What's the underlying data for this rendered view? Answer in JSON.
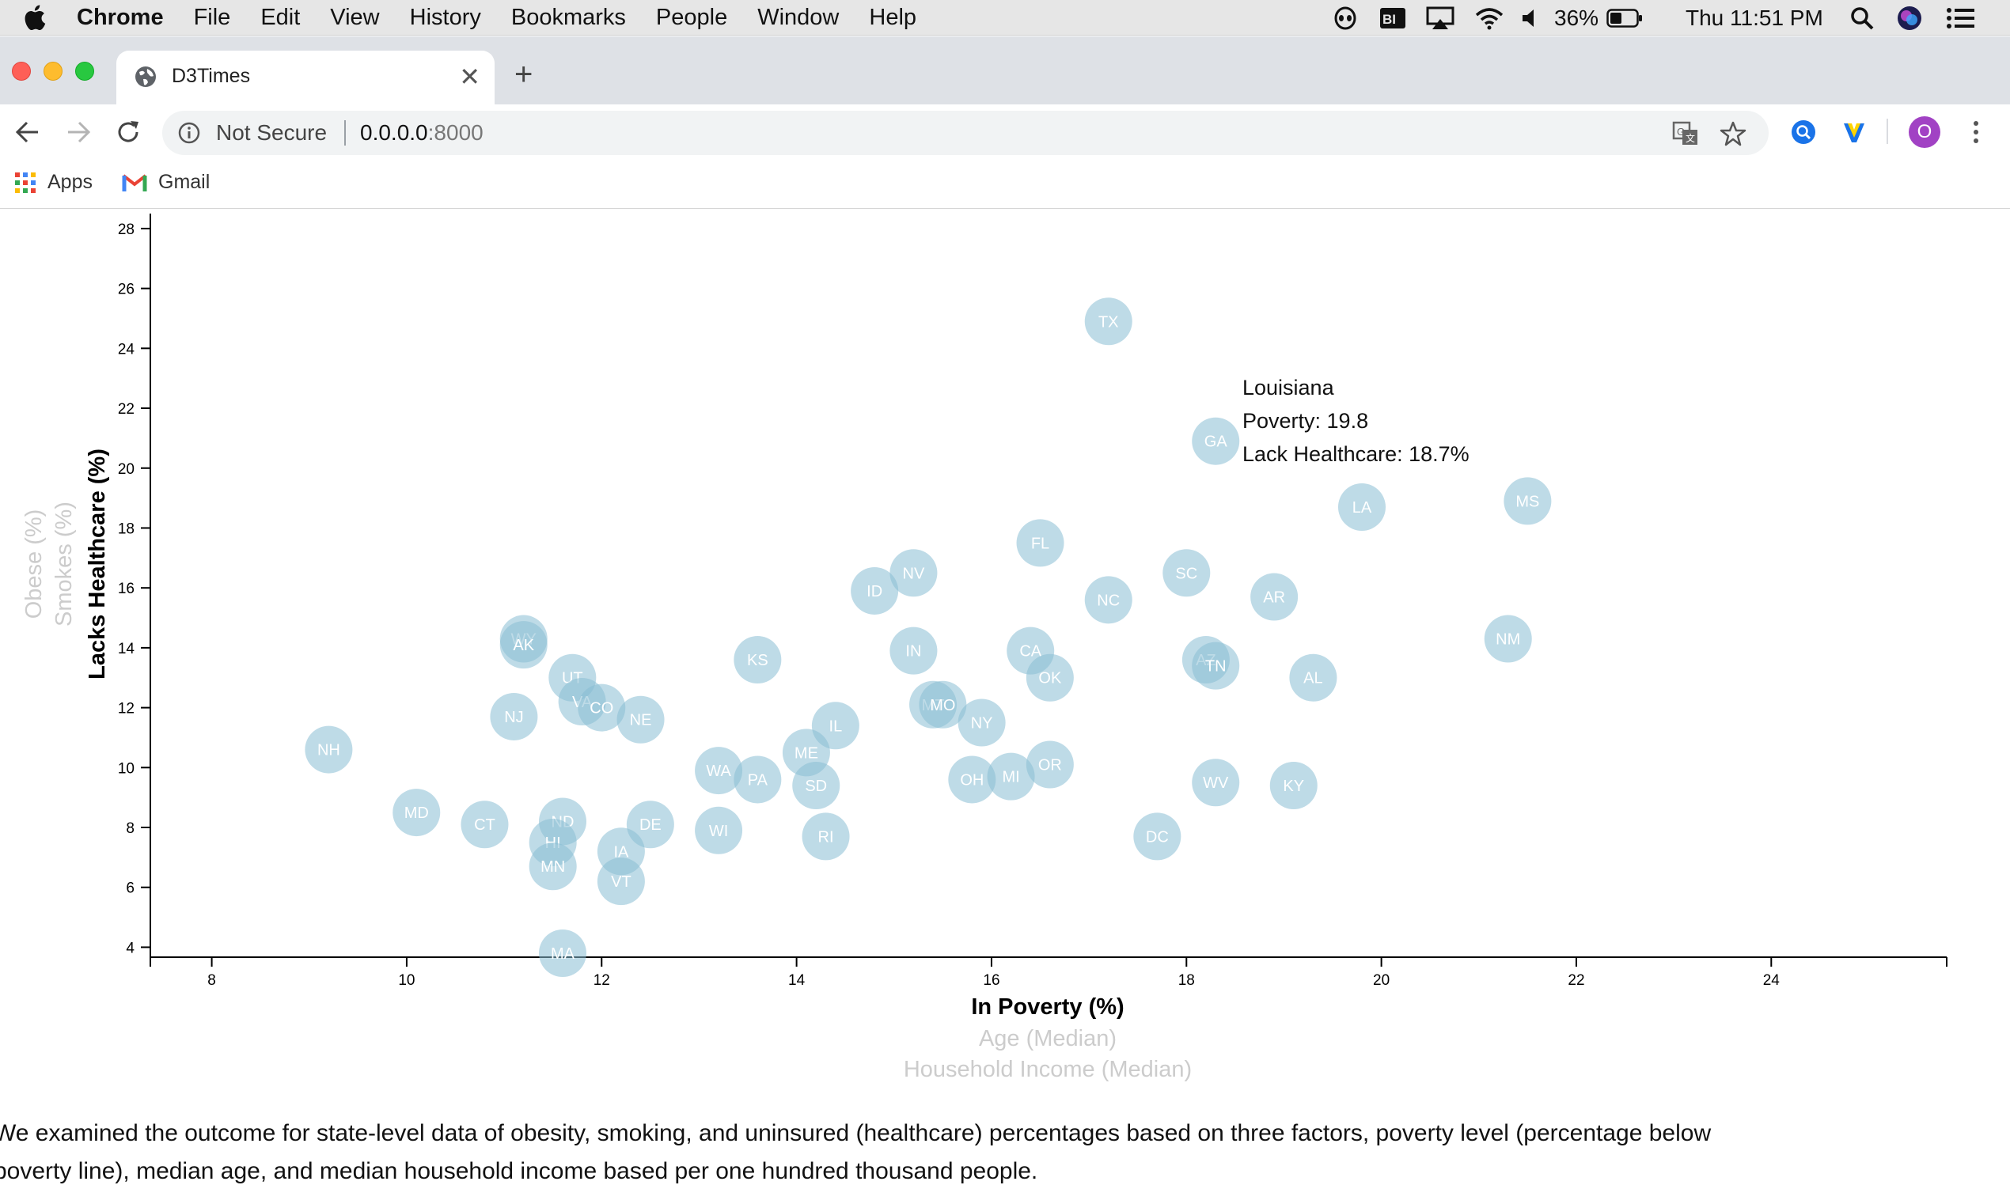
{
  "menubar": {
    "items": [
      "Chrome",
      "File",
      "Edit",
      "View",
      "History",
      "Bookmarks",
      "People",
      "Window",
      "Help"
    ],
    "battery": "36%",
    "clock": "Thu 11:51 PM"
  },
  "tab": {
    "title": "D3Times",
    "close": "✕",
    "new_tab": "+"
  },
  "omnibox": {
    "security": "Not Secure",
    "host": "0.0.0.0",
    "port": ":8000"
  },
  "bookmarks": [
    {
      "label": "Apps",
      "icon": "apps-grid-icon"
    },
    {
      "label": "Gmail",
      "icon": "gmail-icon"
    }
  ],
  "profile_initial": "O",
  "colors": {
    "circle": "#89bdd3",
    "state_text": "#ffffff",
    "inactive_label": "#cccccc",
    "active_label": "#000000"
  },
  "chart_data": {
    "type": "scatter",
    "xlabel": "In Poverty (%)",
    "ylabel": "Lacks Healthcare (%)",
    "x_alt_labels": [
      "Age (Median)",
      "Household Income (Median)"
    ],
    "y_alt_labels": [
      "Smokes (%)",
      "Obese (%)"
    ],
    "xlim": [
      7.37,
      25.8
    ],
    "ylim": [
      3.8,
      28.5
    ],
    "xticks": [
      8,
      10,
      12,
      14,
      16,
      18,
      20,
      22,
      24
    ],
    "yticks": [
      4,
      6,
      8,
      10,
      12,
      14,
      16,
      18,
      20,
      22,
      24,
      26,
      28
    ],
    "points": [
      {
        "abbr": "TX",
        "x": 17.2,
        "y": 24.9
      },
      {
        "abbr": "GA",
        "x": 18.3,
        "y": 20.9
      },
      {
        "abbr": "LA",
        "x": 19.8,
        "y": 18.7
      },
      {
        "abbr": "MS",
        "x": 21.5,
        "y": 18.9
      },
      {
        "abbr": "FL",
        "x": 16.5,
        "y": 17.5
      },
      {
        "abbr": "SC",
        "x": 18.0,
        "y": 16.5
      },
      {
        "abbr": "NV",
        "x": 15.2,
        "y": 16.5
      },
      {
        "abbr": "ID",
        "x": 14.8,
        "y": 15.9
      },
      {
        "abbr": "NC",
        "x": 17.2,
        "y": 15.6
      },
      {
        "abbr": "AR",
        "x": 18.9,
        "y": 15.7
      },
      {
        "abbr": "NM",
        "x": 21.3,
        "y": 14.3
      },
      {
        "abbr": "WY",
        "x": 11.2,
        "y": 14.3
      },
      {
        "abbr": "AK",
        "x": 11.2,
        "y": 14.1
      },
      {
        "abbr": "KS",
        "x": 13.6,
        "y": 13.6
      },
      {
        "abbr": "IN",
        "x": 15.2,
        "y": 13.9
      },
      {
        "abbr": "CA",
        "x": 16.4,
        "y": 13.9
      },
      {
        "abbr": "AZ",
        "x": 18.2,
        "y": 13.6
      },
      {
        "abbr": "TN",
        "x": 18.3,
        "y": 13.4
      },
      {
        "abbr": "OK",
        "x": 16.6,
        "y": 13.0
      },
      {
        "abbr": "AL",
        "x": 19.3,
        "y": 13.0
      },
      {
        "abbr": "UT",
        "x": 11.7,
        "y": 13.0
      },
      {
        "abbr": "VA",
        "x": 11.8,
        "y": 12.2
      },
      {
        "abbr": "CO",
        "x": 12.0,
        "y": 12.0
      },
      {
        "abbr": "NJ",
        "x": 11.1,
        "y": 11.7
      },
      {
        "abbr": "NE",
        "x": 12.4,
        "y": 11.6
      },
      {
        "abbr": "MT",
        "x": 15.4,
        "y": 12.1
      },
      {
        "abbr": "MO",
        "x": 15.5,
        "y": 12.1
      },
      {
        "abbr": "NY",
        "x": 15.9,
        "y": 11.5
      },
      {
        "abbr": "IL",
        "x": 14.4,
        "y": 11.4
      },
      {
        "abbr": "NH",
        "x": 9.2,
        "y": 10.6
      },
      {
        "abbr": "ME",
        "x": 14.1,
        "y": 10.5
      },
      {
        "abbr": "WA",
        "x": 13.2,
        "y": 9.9
      },
      {
        "abbr": "OR",
        "x": 16.6,
        "y": 10.1
      },
      {
        "abbr": "PA",
        "x": 13.6,
        "y": 9.6
      },
      {
        "abbr": "SD",
        "x": 14.2,
        "y": 9.4
      },
      {
        "abbr": "OH",
        "x": 15.8,
        "y": 9.6
      },
      {
        "abbr": "MI",
        "x": 16.2,
        "y": 9.7
      },
      {
        "abbr": "WV",
        "x": 18.3,
        "y": 9.5
      },
      {
        "abbr": "KY",
        "x": 19.1,
        "y": 9.4
      },
      {
        "abbr": "MD",
        "x": 10.1,
        "y": 8.5
      },
      {
        "abbr": "CT",
        "x": 10.8,
        "y": 8.1
      },
      {
        "abbr": "ND",
        "x": 11.6,
        "y": 8.2
      },
      {
        "abbr": "DE",
        "x": 12.5,
        "y": 8.1
      },
      {
        "abbr": "WI",
        "x": 13.2,
        "y": 7.9
      },
      {
        "abbr": "HI",
        "x": 11.5,
        "y": 7.5
      },
      {
        "abbr": "RI",
        "x": 14.3,
        "y": 7.7
      },
      {
        "abbr": "DC",
        "x": 17.7,
        "y": 7.7
      },
      {
        "abbr": "IA",
        "x": 12.2,
        "y": 7.2
      },
      {
        "abbr": "MN",
        "x": 11.5,
        "y": 6.7
      },
      {
        "abbr": "VT",
        "x": 12.2,
        "y": 6.2
      },
      {
        "abbr": "MA",
        "x": 11.6,
        "y": 3.8
      }
    ],
    "tooltip": {
      "state": "Louisiana",
      "poverty_line": "Poverty: 19.8",
      "healthcare_line": "Lack Healthcare: 18.7%"
    }
  },
  "description": "We examined the outcome for state-level data of obesity, smoking, and uninsured (healthcare) percentages based on three factors, poverty level (percentage below poverty line), median age, and median household income based per one hundred thousand people."
}
